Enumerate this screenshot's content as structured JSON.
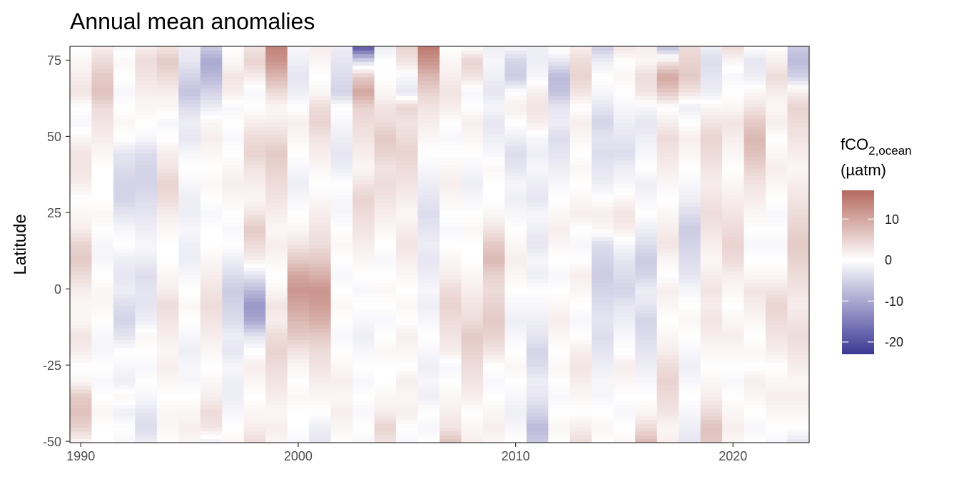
{
  "chart_data": {
    "type": "heatmap",
    "title": "Annual mean anomalies",
    "xlabel": "",
    "ylabel": "Latitude",
    "x_ticks": [
      "1990",
      "2000",
      "2010",
      "2020"
    ],
    "y_ticks": [
      "75",
      "50",
      "25",
      "0",
      "-25",
      "-50"
    ],
    "xlim": [
      1989.5,
      2023.5
    ],
    "ylim": [
      -50,
      80
    ],
    "grid": false,
    "legend": {
      "title_main": "fCO",
      "title_sub": "2,ocean",
      "title_unit": "(µatm)",
      "ticks": [
        "10",
        "0",
        "-10",
        "-20"
      ],
      "range": [
        -23,
        17
      ],
      "placement": "right"
    },
    "colors": {
      "low": "#3b3894",
      "mid": "#ffffff",
      "high": "#b4695e",
      "panel_border": "#333333"
    },
    "years": [
      1990,
      1991,
      1992,
      1993,
      1994,
      1995,
      1996,
      1997,
      1998,
      1999,
      2000,
      2001,
      2002,
      2003,
      2004,
      2005,
      2006,
      2007,
      2008,
      2009,
      2010,
      2011,
      2012,
      2013,
      2014,
      2015,
      2016,
      2017,
      2018,
      2019,
      2020,
      2021,
      2022,
      2023
    ],
    "lat_nodes": [
      -50,
      -45,
      -40,
      -35,
      -30,
      -25,
      -20,
      -15,
      -10,
      -5,
      0,
      5,
      10,
      15,
      20,
      25,
      30,
      35,
      40,
      45,
      50,
      55,
      60,
      65,
      70,
      75,
      80
    ],
    "anomalies": [
      [
        1,
        5,
        7,
        6,
        1,
        0,
        2,
        3,
        1,
        1,
        2,
        4,
        6,
        5,
        2,
        1,
        0,
        2,
        3,
        3,
        1,
        -1,
        0,
        3,
        2,
        1,
        0
      ],
      [
        0,
        0,
        1,
        0,
        -1,
        0,
        -1,
        -1,
        0,
        1,
        1,
        0,
        -1,
        -1,
        0,
        1,
        0,
        0,
        0,
        1,
        2,
        3,
        4,
        7,
        6,
        4,
        2
      ],
      [
        -1,
        0,
        -2,
        1,
        -2,
        -1,
        0,
        -3,
        -5,
        -4,
        -2,
        -3,
        -2,
        0,
        -1,
        -3,
        -5,
        -5,
        -4,
        -3,
        0,
        1,
        0,
        -1,
        0,
        1,
        -1
      ],
      [
        -2,
        -4,
        -3,
        -1,
        0,
        -1,
        0,
        1,
        -2,
        -3,
        -3,
        -4,
        -2,
        -1,
        -2,
        -3,
        -4,
        -5,
        -5,
        -4,
        -1,
        0,
        1,
        2,
        3,
        4,
        2
      ],
      [
        0,
        1,
        1,
        0,
        1,
        2,
        1,
        2,
        3,
        4,
        2,
        1,
        0,
        0,
        1,
        2,
        4,
        5,
        3,
        2,
        0,
        -1,
        1,
        2,
        4,
        6,
        3
      ],
      [
        1,
        2,
        1,
        0,
        -1,
        -1,
        -2,
        -1,
        0,
        1,
        0,
        -1,
        -2,
        -2,
        -1,
        -2,
        -2,
        -1,
        0,
        -1,
        -3,
        -2,
        -4,
        -7,
        -5,
        -3,
        -2
      ],
      [
        -2,
        3,
        4,
        2,
        1,
        0,
        1,
        2,
        3,
        4,
        3,
        2,
        1,
        0,
        0,
        -1,
        0,
        1,
        0,
        1,
        2,
        1,
        -2,
        -5,
        -8,
        -10,
        -6
      ],
      [
        1,
        0,
        -1,
        -2,
        -2,
        -1,
        -3,
        -2,
        -4,
        -5,
        -6,
        -4,
        -2,
        0,
        -1,
        0,
        1,
        2,
        1,
        0,
        -1,
        0,
        -1,
        2,
        3,
        1,
        0
      ],
      [
        4,
        2,
        1,
        0,
        1,
        2,
        0,
        -3,
        -10,
        -12,
        -8,
        -3,
        2,
        4,
        6,
        3,
        1,
        2,
        3,
        5,
        4,
        2,
        0,
        -1,
        2,
        5,
        3
      ],
      [
        1,
        2,
        1,
        2,
        3,
        4,
        5,
        4,
        2,
        3,
        1,
        0,
        1,
        2,
        1,
        2,
        3,
        4,
        5,
        6,
        4,
        2,
        1,
        4,
        8,
        12,
        14
      ],
      [
        -1,
        0,
        0,
        1,
        0,
        1,
        3,
        6,
        8,
        10,
        12,
        10,
        6,
        3,
        1,
        0,
        -1,
        -2,
        -1,
        0,
        1,
        2,
        0,
        -2,
        -3,
        -2,
        -1
      ],
      [
        -3,
        -2,
        0,
        1,
        2,
        3,
        4,
        6,
        9,
        11,
        12,
        9,
        6,
        4,
        3,
        2,
        1,
        0,
        1,
        2,
        3,
        5,
        4,
        1,
        0,
        1,
        2
      ],
      [
        0,
        1,
        2,
        1,
        2,
        1,
        0,
        -1,
        0,
        1,
        0,
        -1,
        0,
        1,
        0,
        -1,
        -1,
        0,
        -2,
        -3,
        -2,
        -1,
        0,
        -5,
        -4,
        -3,
        -2
      ],
      [
        -1,
        0,
        -1,
        0,
        -1,
        0,
        -1,
        -2,
        -1,
        0,
        -1,
        0,
        1,
        2,
        3,
        4,
        5,
        3,
        1,
        2,
        3,
        4,
        5,
        10,
        6,
        -4,
        -20
      ],
      [
        3,
        5,
        2,
        1,
        0,
        0,
        1,
        0,
        -1,
        0,
        1,
        0,
        -1,
        0,
        1,
        2,
        3,
        4,
        3,
        5,
        6,
        4,
        3,
        1,
        0,
        0,
        -2
      ],
      [
        -1,
        0,
        2,
        1,
        2,
        0,
        1,
        2,
        0,
        1,
        0,
        1,
        2,
        3,
        2,
        1,
        2,
        3,
        4,
        5,
        4,
        3,
        5,
        -3,
        -1,
        3,
        5
      ],
      [
        0,
        -1,
        0,
        -2,
        -1,
        -2,
        -1,
        0,
        -1,
        -2,
        -1,
        -2,
        -3,
        -2,
        -3,
        -4,
        -3,
        -2,
        -1,
        0,
        1,
        2,
        3,
        5,
        8,
        12,
        15
      ],
      [
        7,
        3,
        2,
        1,
        0,
        -1,
        2,
        3,
        4,
        5,
        4,
        2,
        1,
        0,
        -1,
        0,
        1,
        2,
        1,
        0,
        -1,
        0,
        2,
        3,
        2,
        1,
        0
      ],
      [
        2,
        1,
        0,
        2,
        3,
        4,
        5,
        6,
        4,
        3,
        2,
        1,
        0,
        0,
        1,
        0,
        -1,
        -2,
        -1,
        0,
        1,
        2,
        0,
        -1,
        3,
        5,
        0
      ],
      [
        1,
        2,
        1,
        0,
        -1,
        0,
        3,
        5,
        6,
        5,
        4,
        5,
        8,
        6,
        3,
        1,
        0,
        0,
        1,
        -1,
        -2,
        -3,
        -1,
        -3,
        -2,
        -1,
        -2
      ],
      [
        0,
        -1,
        -2,
        -1,
        0,
        1,
        0,
        -1,
        -2,
        -1,
        0,
        1,
        2,
        1,
        0,
        -1,
        -2,
        -1,
        -3,
        -4,
        -2,
        0,
        2,
        0,
        -6,
        -5,
        -1
      ],
      [
        -6,
        -8,
        -5,
        -3,
        -2,
        -4,
        -5,
        -3,
        -2,
        -1,
        0,
        -2,
        -1,
        -3,
        -2,
        -1,
        -3,
        -2,
        -1,
        -2,
        -1,
        2,
        3,
        2,
        -1,
        -2,
        -2
      ],
      [
        0,
        1,
        0,
        -1,
        0,
        1,
        0,
        1,
        2,
        1,
        0,
        -1,
        0,
        1,
        2,
        1,
        0,
        -1,
        -2,
        -3,
        -4,
        -2,
        -3,
        -7,
        -8,
        -3,
        1
      ],
      [
        4,
        2,
        0,
        1,
        2,
        3,
        2,
        0,
        -1,
        0,
        1,
        2,
        0,
        -1,
        0,
        2,
        1,
        0,
        1,
        0,
        1,
        2,
        0,
        3,
        5,
        4,
        2
      ],
      [
        0,
        1,
        0,
        -1,
        -1,
        -2,
        -3,
        -4,
        -3,
        -4,
        -5,
        -6,
        -5,
        -4,
        1,
        2,
        0,
        -2,
        -3,
        -4,
        -3,
        -5,
        -3,
        -1,
        0,
        -2,
        -6
      ],
      [
        1,
        0,
        -1,
        0,
        1,
        2,
        0,
        -1,
        -2,
        -3,
        -5,
        -4,
        -3,
        -1,
        2,
        3,
        1,
        -1,
        -2,
        -4,
        -3,
        -2,
        -1,
        0,
        1,
        0,
        3
      ],
      [
        8,
        4,
        1,
        0,
        -1,
        -2,
        -3,
        -4,
        -5,
        -3,
        -2,
        -5,
        -6,
        -4,
        -2,
        0,
        -1,
        -2,
        0,
        -1,
        -2,
        -3,
        -1,
        3,
        4,
        1,
        2
      ],
      [
        2,
        1,
        3,
        4,
        5,
        4,
        2,
        1,
        0,
        1,
        2,
        0,
        1,
        3,
        2,
        1,
        0,
        1,
        2,
        3,
        4,
        2,
        0,
        6,
        10,
        3,
        -8
      ],
      [
        -3,
        -2,
        -1,
        0,
        -1,
        -2,
        -1,
        0,
        1,
        0,
        -1,
        -3,
        -4,
        -5,
        -6,
        -4,
        -2,
        -1,
        0,
        1,
        2,
        0,
        -2,
        3,
        6,
        5,
        4
      ],
      [
        6,
        7,
        4,
        2,
        1,
        0,
        1,
        2,
        3,
        2,
        3,
        2,
        1,
        2,
        3,
        4,
        3,
        2,
        3,
        4,
        5,
        3,
        1,
        -2,
        -3,
        -4,
        -2
      ],
      [
        1,
        2,
        1,
        0,
        -1,
        0,
        1,
        2,
        1,
        0,
        1,
        2,
        4,
        5,
        4,
        3,
        2,
        1,
        0,
        1,
        2,
        3,
        1,
        0,
        -1,
        1,
        4
      ],
      [
        0,
        -1,
        0,
        1,
        2,
        0,
        1,
        0,
        1,
        2,
        3,
        1,
        0,
        -1,
        0,
        1,
        2,
        3,
        5,
        7,
        8,
        6,
        3,
        1,
        -2,
        -3,
        0
      ],
      [
        -1,
        0,
        1,
        2,
        1,
        0,
        2,
        3,
        4,
        5,
        3,
        1,
        0,
        -1,
        0,
        -1,
        0,
        1,
        2,
        1,
        0,
        2,
        1,
        2,
        4,
        2,
        0
      ],
      [
        -3,
        0,
        1,
        2,
        1,
        2,
        3,
        4,
        3,
        2,
        3,
        4,
        5,
        6,
        5,
        4,
        3,
        2,
        1,
        2,
        3,
        4,
        5,
        2,
        -5,
        -8,
        -6
      ]
    ]
  }
}
